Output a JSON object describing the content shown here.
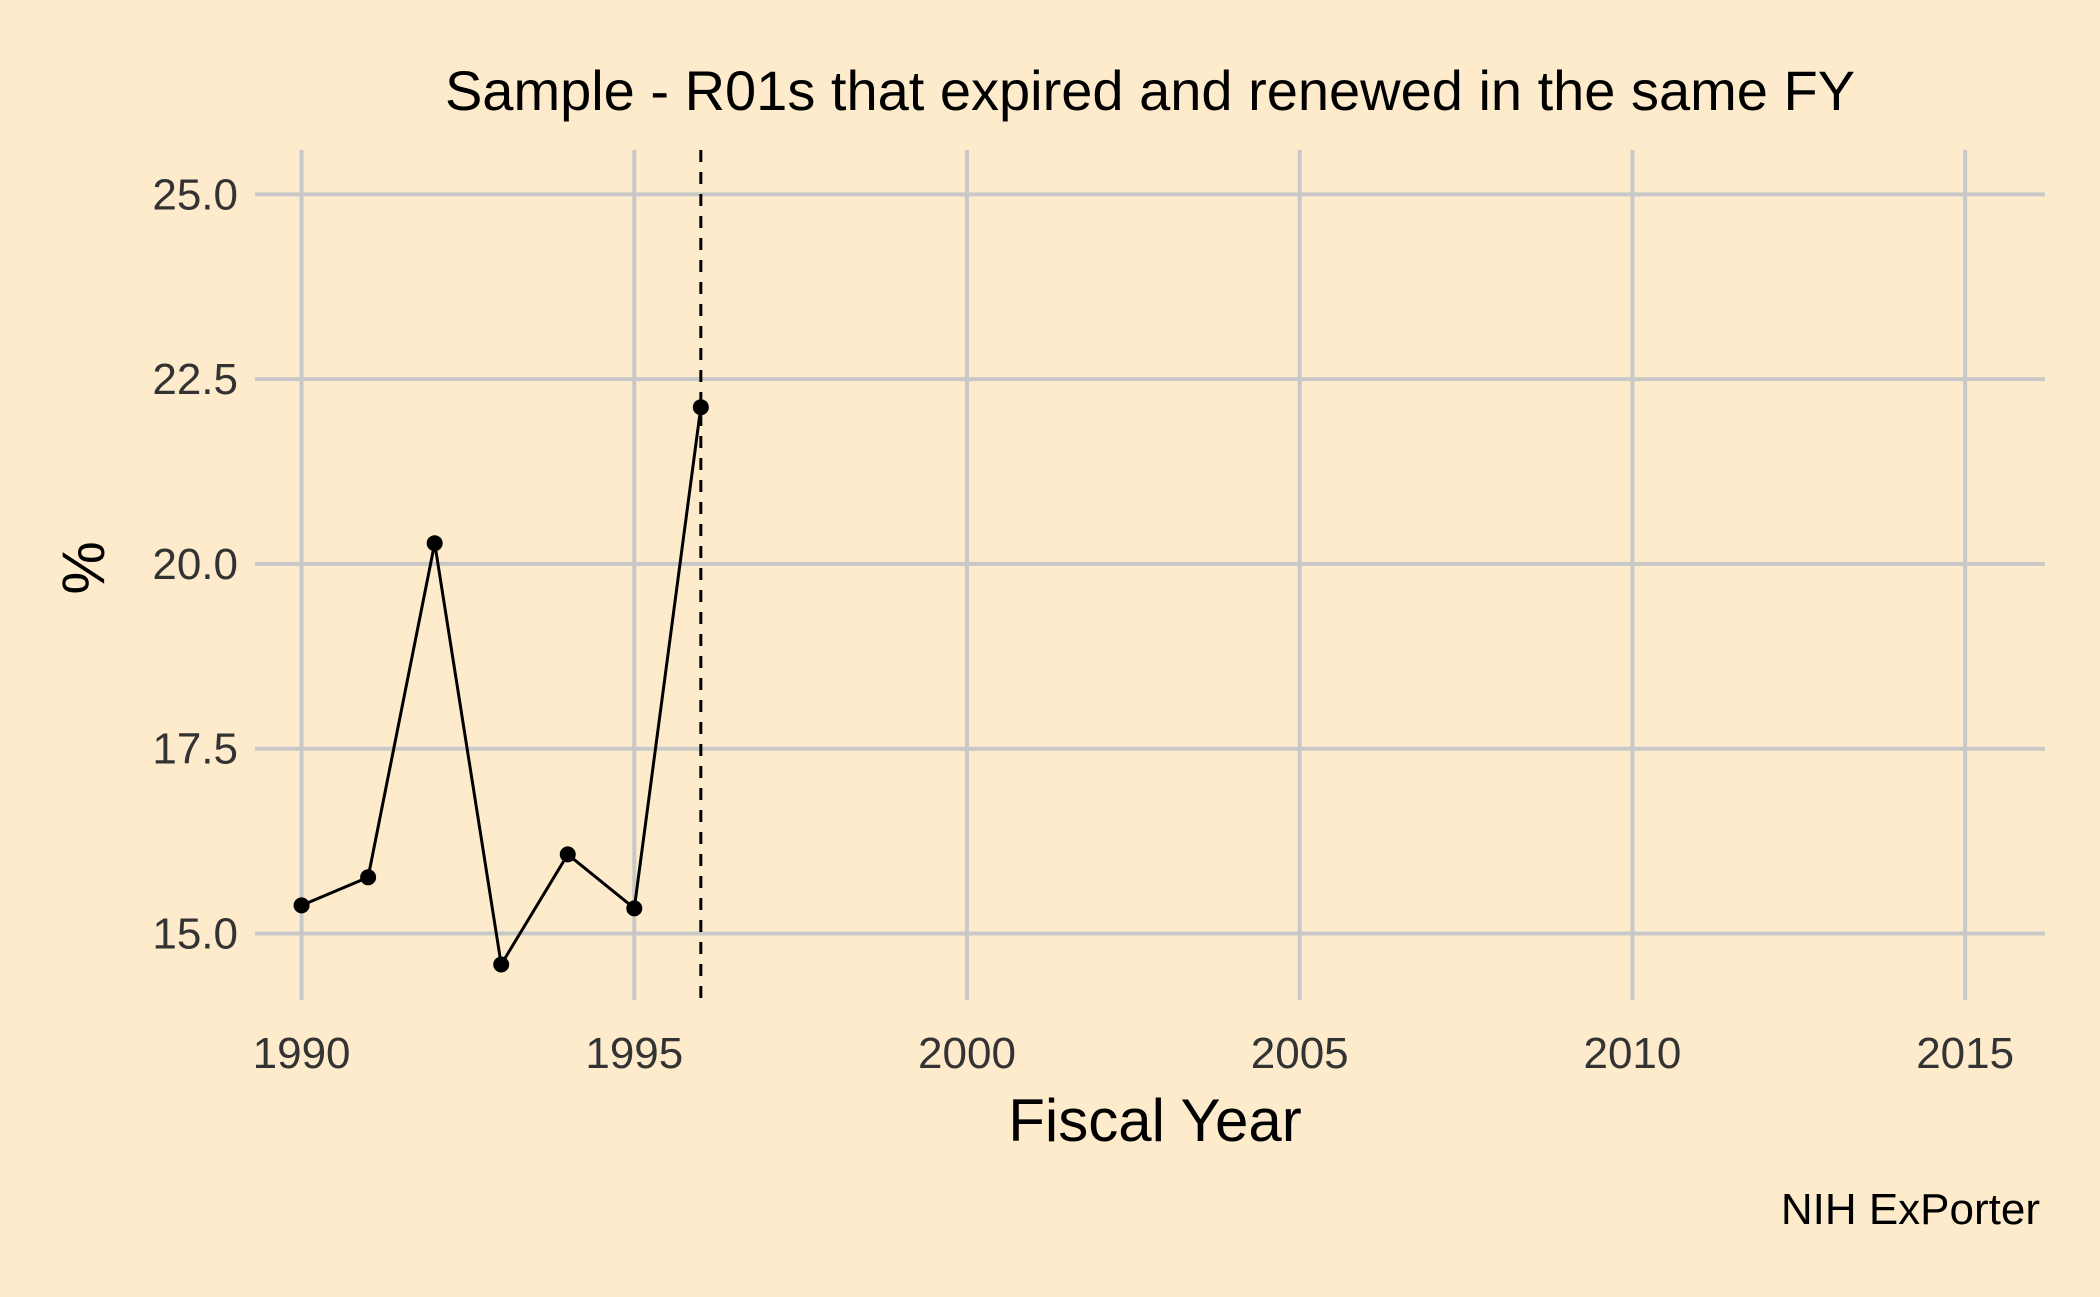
{
  "chart_data": {
    "type": "line",
    "title": "Sample - R01s that expired and renewed in the same FY",
    "xlabel": "Fiscal Year",
    "ylabel": "%",
    "caption": "NIH ExPorter",
    "xlim": [
      1989.3,
      2016.2
    ],
    "ylim": [
      14.1,
      25.6
    ],
    "x_ticks": [
      1990,
      1995,
      2000,
      2005,
      2010,
      2015
    ],
    "y_ticks": [
      15.0,
      17.5,
      20.0,
      22.5,
      25.0
    ],
    "y_tick_labels": [
      "15.0",
      "17.5",
      "20.0",
      "22.5",
      "25.0"
    ],
    "grid": true,
    "legend": "none",
    "reference_line": {
      "axis": "x",
      "value": 1996,
      "style": "dashed"
    },
    "series": [
      {
        "x": [
          1990,
          1991,
          1992,
          1993,
          1994,
          1995,
          1996
        ],
        "y": [
          15.38,
          15.76,
          20.28,
          14.58,
          16.07,
          15.34,
          22.12
        ],
        "color": "#000000"
      }
    ],
    "colors": {
      "background": "#FDEBCB",
      "grid": "#C8C8C8",
      "series": "#000000"
    }
  }
}
